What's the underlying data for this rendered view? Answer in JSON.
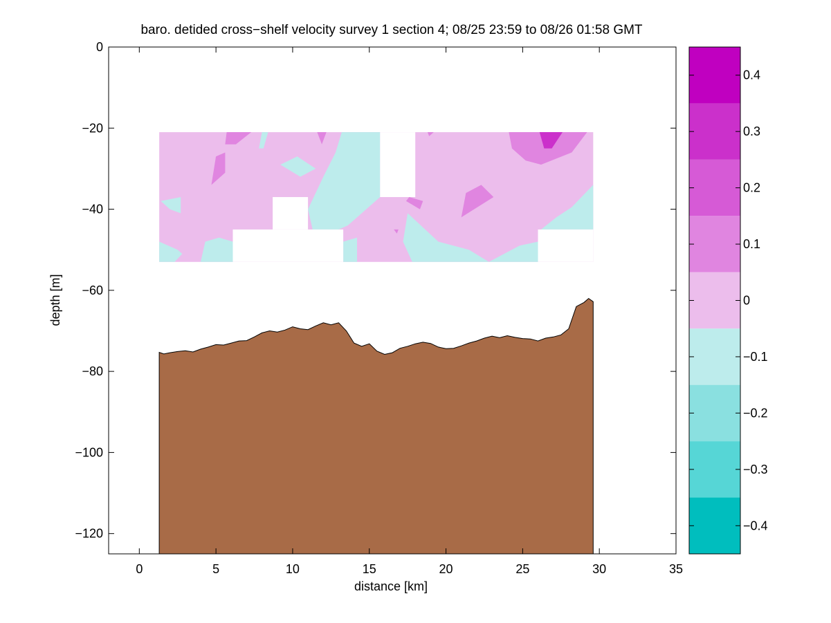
{
  "chart_data": {
    "type": "contourf",
    "title": "baro. detided cross−shelf velocity survey 1 section 4; 08/25 23:59 to 08/26 01:58 GMT",
    "xlabel": "distance [km]",
    "ylabel": "depth [m]",
    "xlim": [
      -2,
      35
    ],
    "ylim": [
      -125,
      0
    ],
    "x_ticks": [
      0,
      5,
      10,
      15,
      20,
      25,
      30,
      35
    ],
    "x_tick_labels": [
      "0",
      "5",
      "10",
      "15",
      "20",
      "25",
      "30",
      "35"
    ],
    "y_ticks": [
      0,
      -20,
      -40,
      -60,
      -80,
      -100,
      -120
    ],
    "y_tick_labels": [
      "0",
      "−20",
      "−40",
      "−60",
      "−80",
      "−100",
      "−120"
    ],
    "colorbar": {
      "range": [
        -0.45,
        0.45
      ],
      "ticks": [
        0.4,
        0.3,
        0.2,
        0.1,
        0,
        -0.1,
        -0.2,
        -0.3,
        -0.4
      ],
      "tick_labels": [
        "0.4",
        "0.3",
        "0.2",
        "0.1",
        "0",
        "−0.1",
        "−0.2",
        "−0.3",
        "−0.4"
      ],
      "levels": [
        {
          "min": 0.35,
          "max": 0.45,
          "color": "#c000c0"
        },
        {
          "min": 0.25,
          "max": 0.35,
          "color": "#cb30cb"
        },
        {
          "min": 0.15,
          "max": 0.25,
          "color": "#d65ad6"
        },
        {
          "min": 0.05,
          "max": 0.15,
          "color": "#e085e0"
        },
        {
          "min": -0.05,
          "max": 0.05,
          "color": "#ecbdec"
        },
        {
          "min": -0.15,
          "max": -0.05,
          "color": "#bdecec"
        },
        {
          "min": -0.25,
          "max": -0.15,
          "color": "#8ae0e0"
        },
        {
          "min": -0.35,
          "max": -0.25,
          "color": "#56d6d6"
        },
        {
          "min": -0.45,
          "max": -0.35,
          "color": "#00bebe"
        }
      ]
    },
    "colors": {
      "seabed": "#a86b47",
      "positive_weak": "#ecbdec",
      "positive_medium": "#e085e0",
      "positive_strong": "#cb30cb",
      "negative_weak": "#bdecec"
    },
    "velocity_field": {
      "x_range": [
        1.3,
        29.6
      ],
      "depth_range": [
        -21,
        -53
      ],
      "background_level": "positive_weak",
      "patches": [
        {
          "level": "negative_weak",
          "points": [
            [
              13.2,
              -21
            ],
            [
              15.7,
              -21
            ],
            [
              15.7,
              -37
            ],
            [
              13.6,
              -44
            ],
            [
              13.0,
              -45
            ],
            [
              11.3,
              -45
            ],
            [
              11.0,
              -40
            ],
            [
              12.0,
              -32
            ],
            [
              12.8,
              -26
            ]
          ]
        },
        {
          "level": "negative_weak",
          "points": [
            [
              17.5,
              -41
            ],
            [
              19.5,
              -48
            ],
            [
              21.5,
              -50
            ],
            [
              22.8,
              -53
            ],
            [
              17.8,
              -53
            ],
            [
              17.2,
              -48
            ]
          ]
        },
        {
          "level": "negative_weak",
          "points": [
            [
              24.8,
              -49
            ],
            [
              26.0,
              -48
            ],
            [
              26.0,
              -53
            ],
            [
              22.8,
              -53
            ]
          ]
        },
        {
          "level": "negative_weak",
          "points": [
            [
              1.3,
              -48
            ],
            [
              2.5,
              -50
            ],
            [
              2.8,
              -51
            ],
            [
              2.3,
              -53
            ],
            [
              1.3,
              -53
            ]
          ]
        },
        {
          "level": "negative_weak",
          "points": [
            [
              4.0,
              -53
            ],
            [
              4.3,
              -48
            ],
            [
              5.2,
              -47
            ],
            [
              6.1,
              -48
            ],
            [
              6.1,
              -53
            ]
          ]
        },
        {
          "level": "negative_weak",
          "points": [
            [
              13.3,
              -48
            ],
            [
              14.2,
              -47
            ],
            [
              14.2,
              -53
            ],
            [
              13.3,
              -53
            ]
          ]
        },
        {
          "level": "negative_weak",
          "points": [
            [
              9.2,
              -29
            ],
            [
              10.3,
              -27
            ],
            [
              11.5,
              -30
            ],
            [
              10.5,
              -32
            ]
          ]
        },
        {
          "level": "negative_weak",
          "points": [
            [
              8.0,
              -21
            ],
            [
              8.4,
              -21
            ],
            [
              8.1,
              -25
            ],
            [
              7.8,
              -25
            ]
          ]
        },
        {
          "level": "negative_weak",
          "points": [
            [
              1.4,
              -38
            ],
            [
              2.7,
              -37
            ],
            [
              2.7,
              -41
            ],
            [
              2.0,
              -40
            ]
          ]
        },
        {
          "level": "negative_weak",
          "points": [
            [
              26.2,
              -45
            ],
            [
              27.2,
              -42
            ],
            [
              28.2,
              -39.5
            ],
            [
              29.6,
              -34
            ],
            [
              29.6,
              -45
            ]
          ]
        },
        {
          "level": "positive_medium",
          "points": [
            [
              24.1,
              -21
            ],
            [
              29.2,
              -21
            ],
            [
              28.2,
              -26
            ],
            [
              26.2,
              -29
            ],
            [
              25.2,
              -28
            ],
            [
              24.3,
              -25
            ]
          ]
        },
        {
          "level": "positive_medium",
          "points": [
            [
              21.3,
              -36
            ],
            [
              22.3,
              -34
            ],
            [
              23.1,
              -37
            ],
            [
              21.0,
              -42
            ]
          ]
        },
        {
          "level": "positive_medium",
          "points": [
            [
              5.0,
              -27
            ],
            [
              5.6,
              -26
            ],
            [
              5.6,
              -31
            ],
            [
              4.7,
              -34
            ]
          ]
        },
        {
          "level": "positive_medium",
          "points": [
            [
              5.7,
              -21
            ],
            [
              7.3,
              -21
            ],
            [
              6.3,
              -24
            ],
            [
              5.6,
              -24
            ]
          ]
        },
        {
          "level": "positive_medium",
          "points": [
            [
              11.6,
              -21
            ],
            [
              12.2,
              -21
            ],
            [
              11.9,
              -24
            ]
          ]
        },
        {
          "level": "positive_medium",
          "points": [
            [
              17.6,
              -37
            ],
            [
              18.5,
              -38
            ],
            [
              18.3,
              -40
            ],
            [
              17.4,
              -38
            ]
          ]
        },
        {
          "level": "positive_medium",
          "points": [
            [
              18.8,
              -21
            ],
            [
              19.2,
              -21
            ],
            [
              18.9,
              -22
            ]
          ]
        },
        {
          "level": "positive_medium",
          "points": [
            [
              16.6,
              -45
            ],
            [
              16.9,
              -45
            ],
            [
              16.8,
              -46
            ]
          ]
        },
        {
          "level": "positive_strong",
          "points": [
            [
              26.1,
              -21
            ],
            [
              27.6,
              -21
            ],
            [
              26.9,
              -25
            ],
            [
              26.4,
              -25
            ]
          ]
        }
      ],
      "masked_regions": [
        [
          [
            15.7,
            -21
          ],
          [
            18.0,
            -21
          ],
          [
            18.0,
            -37
          ],
          [
            15.7,
            -37
          ]
        ],
        [
          [
            8.7,
            -37
          ],
          [
            11.0,
            -37
          ],
          [
            11.0,
            -45
          ],
          [
            8.7,
            -45
          ]
        ],
        [
          [
            6.1,
            -45
          ],
          [
            13.3,
            -45
          ],
          [
            13.3,
            -53
          ],
          [
            6.1,
            -53
          ]
        ],
        [
          [
            26.0,
            -45
          ],
          [
            29.6,
            -45
          ],
          [
            29.6,
            -53
          ],
          [
            26.0,
            -53
          ]
        ]
      ]
    },
    "seabed_profile": [
      [
        1.3,
        -75.3
      ],
      [
        1.6,
        -75.7
      ],
      [
        2.0,
        -75.4
      ],
      [
        2.5,
        -75.1
      ],
      [
        3.0,
        -74.9
      ],
      [
        3.5,
        -75.2
      ],
      [
        4.0,
        -74.5
      ],
      [
        4.5,
        -74.0
      ],
      [
        5.0,
        -73.4
      ],
      [
        5.5,
        -73.5
      ],
      [
        6.0,
        -73.0
      ],
      [
        6.5,
        -72.5
      ],
      [
        7.0,
        -72.4
      ],
      [
        7.5,
        -71.5
      ],
      [
        8.0,
        -70.5
      ],
      [
        8.5,
        -70.0
      ],
      [
        9.0,
        -70.3
      ],
      [
        9.5,
        -69.8
      ],
      [
        10.0,
        -69.0
      ],
      [
        10.5,
        -69.5
      ],
      [
        11.0,
        -69.7
      ],
      [
        11.5,
        -68.8
      ],
      [
        12.0,
        -68.0
      ],
      [
        12.5,
        -68.5
      ],
      [
        13.0,
        -68.0
      ],
      [
        13.5,
        -70.0
      ],
      [
        14.0,
        -73.0
      ],
      [
        14.5,
        -73.8
      ],
      [
        15.0,
        -73.2
      ],
      [
        15.5,
        -75.0
      ],
      [
        16.0,
        -75.8
      ],
      [
        16.5,
        -75.4
      ],
      [
        17.0,
        -74.3
      ],
      [
        17.5,
        -73.8
      ],
      [
        18.0,
        -73.2
      ],
      [
        18.5,
        -72.8
      ],
      [
        19.0,
        -73.1
      ],
      [
        19.5,
        -74.0
      ],
      [
        20.0,
        -74.4
      ],
      [
        20.5,
        -74.3
      ],
      [
        21.0,
        -73.7
      ],
      [
        21.5,
        -73.0
      ],
      [
        22.0,
        -72.5
      ],
      [
        22.5,
        -71.8
      ],
      [
        23.0,
        -71.3
      ],
      [
        23.5,
        -71.7
      ],
      [
        24.0,
        -71.2
      ],
      [
        24.5,
        -71.6
      ],
      [
        25.0,
        -71.9
      ],
      [
        25.5,
        -72.0
      ],
      [
        26.0,
        -72.5
      ],
      [
        26.5,
        -71.8
      ],
      [
        27.0,
        -71.5
      ],
      [
        27.5,
        -71.0
      ],
      [
        28.0,
        -69.5
      ],
      [
        28.5,
        -64.0
      ],
      [
        29.0,
        -63.0
      ],
      [
        29.3,
        -62.0
      ],
      [
        29.6,
        -62.8
      ]
    ]
  }
}
